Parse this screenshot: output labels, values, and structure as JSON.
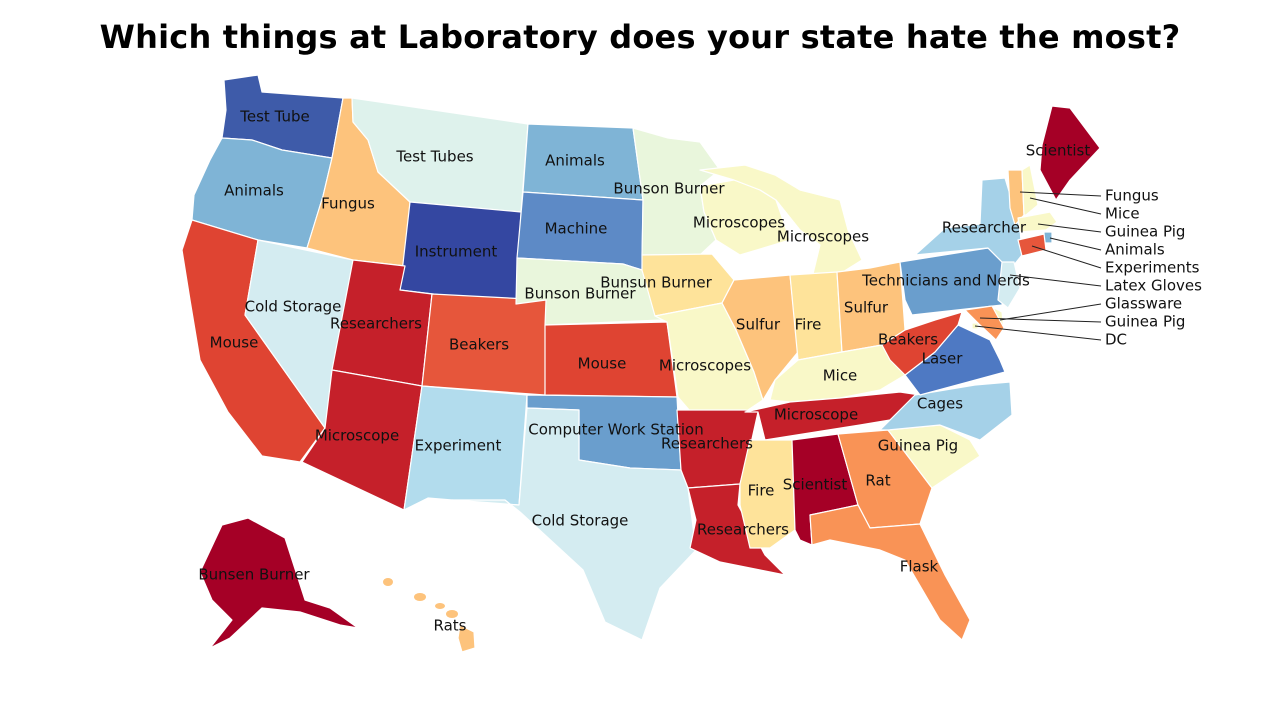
{
  "title": "Which things at Laboratory does your state hate the most?",
  "colors": {
    "dark_red": "#a50026",
    "red": "#c5202a",
    "red_orange": "#df4432",
    "orange_red": "#e6563b",
    "orange": "#f99356",
    "light_orange": "#fdc37c",
    "pale_yellow": "#fee39a",
    "cream": "#f9f8c8",
    "pale_green": "#e9f6dc",
    "mint": "#def2ec",
    "pale_blue": "#d4ecf1",
    "light_blue": "#b2dced",
    "sky_blue": "#a5d1e8",
    "mid_blue": "#7fb4d6",
    "steel_blue": "#6a9ecd",
    "blue": "#4e79c3",
    "dark_blue": "#3447a1"
  },
  "states": [
    {
      "id": "WA",
      "label": "Test Tube",
      "color": "#3e5ba9"
    },
    {
      "id": "OR",
      "label": "Animals",
      "color": "#7fb4d6"
    },
    {
      "id": "CA",
      "label": "Mouse",
      "color": "#df4432"
    },
    {
      "id": "NV",
      "label": "Cold Storage",
      "color": "#d4ecf1"
    },
    {
      "id": "ID",
      "label": "Fungus",
      "color": "#fdc37c"
    },
    {
      "id": "MT",
      "label": "Test Tubes",
      "color": "#def2ec"
    },
    {
      "id": "WY",
      "label": "Instrument",
      "color": "#3447a1"
    },
    {
      "id": "UT",
      "label": "Researchers",
      "color": "#c5202a"
    },
    {
      "id": "AZ",
      "label": "Microscope",
      "color": "#c5202a"
    },
    {
      "id": "CO",
      "label": "Beakers",
      "color": "#e6563b"
    },
    {
      "id": "NM",
      "label": "Experiment",
      "color": "#b2dced"
    },
    {
      "id": "ND",
      "label": "Animals",
      "color": "#7fb4d6"
    },
    {
      "id": "SD",
      "label": "Machine",
      "color": "#5d8ac6"
    },
    {
      "id": "NE",
      "label": "Bunson Burner",
      "color": "#e9f6dc"
    },
    {
      "id": "KS",
      "label": "Mouse",
      "color": "#df4432"
    },
    {
      "id": "OK",
      "label": "Computer Work Station",
      "color": "#6a9ecd"
    },
    {
      "id": "TX",
      "label": "Cold Storage",
      "color": "#d4ecf1"
    },
    {
      "id": "MN",
      "label": "Bunson Burner",
      "color": "#e9f6dc"
    },
    {
      "id": "IA",
      "label": "Bunsun Burner",
      "color": "#fee39a"
    },
    {
      "id": "MO",
      "label": "Microscopes",
      "color": "#f9f8c8"
    },
    {
      "id": "AR",
      "label": "Researchers",
      "color": "#c5202a"
    },
    {
      "id": "LA",
      "label": "Researchers",
      "color": "#c5202a"
    },
    {
      "id": "WI",
      "label": "Microscopes",
      "color": "#f9f8c8"
    },
    {
      "id": "MI",
      "label": "Microscopes",
      "color": "#f9f8c8"
    },
    {
      "id": "IL",
      "label": "Sulfur",
      "color": "#fdc37c"
    },
    {
      "id": "IN",
      "label": "Fire",
      "color": "#fee39a"
    },
    {
      "id": "OH",
      "label": "Sulfur",
      "color": "#fdc37c"
    },
    {
      "id": "KY",
      "label": "Mice",
      "color": "#f9f8c8"
    },
    {
      "id": "TN",
      "label": "Microscope",
      "color": "#c5202a"
    },
    {
      "id": "MS",
      "label": "Fire",
      "color": "#fee39a"
    },
    {
      "id": "AL",
      "label": "Scientist",
      "color": "#a50026"
    },
    {
      "id": "GA",
      "label": "Rat",
      "color": "#f99356"
    },
    {
      "id": "FL",
      "label": "Flask",
      "color": "#f99356"
    },
    {
      "id": "SC",
      "label": "Guinea Pig",
      "color": "#f9f8c8"
    },
    {
      "id": "NC",
      "label": "Cages",
      "color": "#a5d1e8"
    },
    {
      "id": "VA",
      "label": "Laser",
      "color": "#4e79c3"
    },
    {
      "id": "WV",
      "label": "Beakers",
      "color": "#df4432"
    },
    {
      "id": "PA",
      "label": "Technicians and Nerds",
      "color": "#6a9ecd"
    },
    {
      "id": "NY",
      "label": "Researcher",
      "color": "#a5d1e8"
    },
    {
      "id": "ME",
      "label": "Scientist",
      "color": "#a50026"
    },
    {
      "id": "AK",
      "label": "Bunsen Burner",
      "color": "#a50026"
    },
    {
      "id": "HI",
      "label": "Rats",
      "color": "#fdc37c"
    }
  ],
  "small_states": [
    {
      "id": "VT",
      "label": "Fungus",
      "color": "#fdc37c"
    },
    {
      "id": "NH",
      "label": "Mice",
      "color": "#f9f8c8"
    },
    {
      "id": "MA",
      "label": "Guinea Pig",
      "color": "#f9f8c8"
    },
    {
      "id": "RI",
      "label": "Animals",
      "color": "#7fb4d6"
    },
    {
      "id": "CT",
      "label": "Experiments",
      "color": "#e6563b"
    },
    {
      "id": "NJ",
      "label": "Latex Gloves",
      "color": "#d4ecf1"
    },
    {
      "id": "DE",
      "label": "Glassware",
      "color": "#f9f8c8"
    },
    {
      "id": "MD",
      "label": "Guinea Pig",
      "color": "#f99356"
    },
    {
      "id": "DC",
      "label": "DC",
      "color": "#f9f8c8"
    }
  ]
}
